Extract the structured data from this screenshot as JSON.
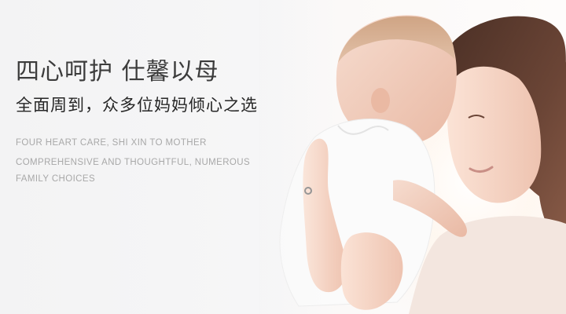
{
  "banner": {
    "headline": "四心呵护 仕馨以母",
    "subline": "全面周到，众多位妈妈倾心之选",
    "english_lines": [
      "FOUR HEART CARE, SHI XIN TO MOTHER",
      "COMPREHENSIVE AND THOUGHTFUL, NUMEROUS",
      "FAMILY CHOICES"
    ]
  },
  "photo": {
    "subject": "mother-holding-baby",
    "colors": {
      "background": "#f4f4f5",
      "hair": "#5a3a2e",
      "skin": "#f1d2c3",
      "glow": "#fff6ee"
    }
  }
}
